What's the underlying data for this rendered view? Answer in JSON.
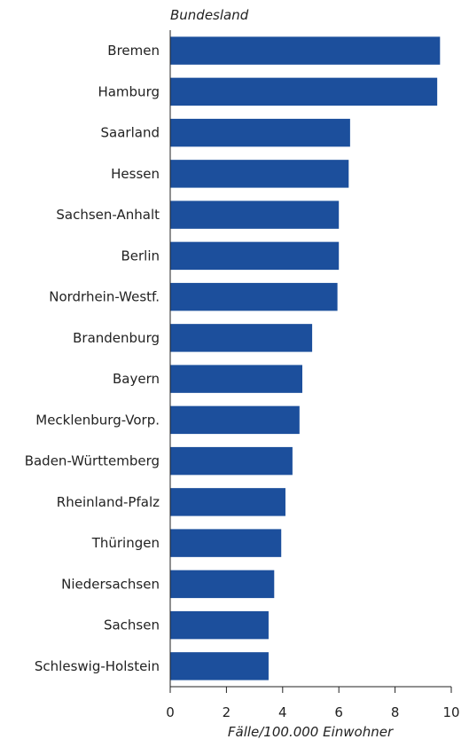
{
  "chart_data": {
    "type": "bar",
    "orientation": "horizontal",
    "title": "",
    "y_axis_title": "Bundesland",
    "x_axis_title": "Fälle/100.000 Einwohner",
    "categories": [
      "Bremen",
      "Hamburg",
      "Saarland",
      "Hessen",
      "Sachsen-Anhalt",
      "Berlin",
      "Nordrhein-Westf.",
      "Brandenburg",
      "Bayern",
      "Mecklenburg-Vorp.",
      "Baden-Württemberg",
      "Rheinland-Pfalz",
      "Thüringen",
      "Niedersachsen",
      "Sachsen",
      "Schleswig-Holstein"
    ],
    "values": [
      9.6,
      9.5,
      6.4,
      6.35,
      6.0,
      6.0,
      5.95,
      5.05,
      4.7,
      4.6,
      4.35,
      4.1,
      3.95,
      3.7,
      3.5,
      3.5
    ],
    "xlim": [
      0,
      10
    ],
    "x_ticks": [
      0,
      2,
      4,
      6,
      8,
      10
    ],
    "x_tick_labels": [
      "0",
      "2",
      "4",
      "6",
      "8",
      "10"
    ],
    "bar_color": "#1c4f9c",
    "axis_color": "#222222",
    "grid": false,
    "legend": "none"
  }
}
